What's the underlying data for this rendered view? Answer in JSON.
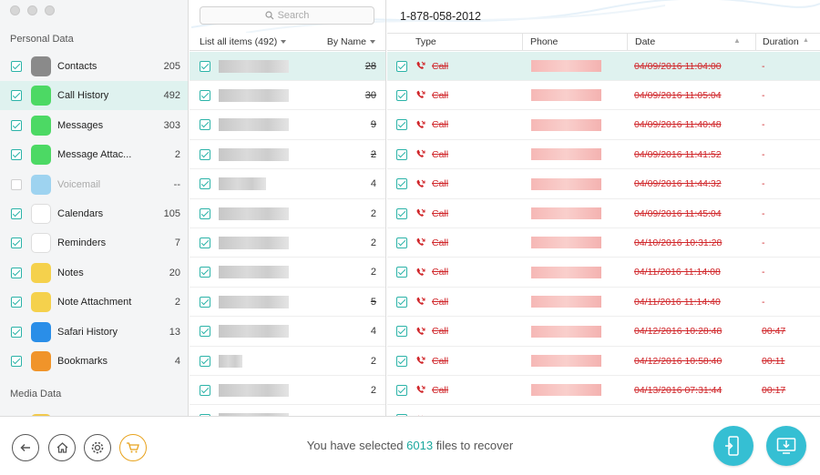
{
  "sidebar": {
    "section_personal": "Personal Data",
    "section_media": "Media Data",
    "items": [
      {
        "label": "Contacts",
        "count": "205",
        "checked": true,
        "icon": "contacts-icon",
        "color": "#8a8a8a"
      },
      {
        "label": "Call History",
        "count": "492",
        "checked": true,
        "icon": "phone-icon",
        "color": "#4cd964",
        "selected": true
      },
      {
        "label": "Messages",
        "count": "303",
        "checked": true,
        "icon": "message-icon",
        "color": "#4cd964"
      },
      {
        "label": "Message Attac...",
        "count": "2",
        "checked": true,
        "icon": "message-attachment-icon",
        "color": "#4cd964"
      },
      {
        "label": "Voicemail",
        "count": "--",
        "checked": false,
        "icon": "voicemail-icon",
        "color": "#9ed3f0"
      },
      {
        "label": "Calendars",
        "count": "105",
        "checked": true,
        "icon": "calendar-icon",
        "color": "#ffffff"
      },
      {
        "label": "Reminders",
        "count": "7",
        "checked": true,
        "icon": "reminders-icon",
        "color": "#ffffff"
      },
      {
        "label": "Notes",
        "count": "20",
        "checked": true,
        "icon": "notes-icon",
        "color": "#f5d14c"
      },
      {
        "label": "Note Attachment",
        "count": "2",
        "checked": true,
        "icon": "note-attachment-icon",
        "color": "#f5d14c"
      },
      {
        "label": "Safari History",
        "count": "13",
        "checked": true,
        "icon": "safari-icon",
        "color": "#2a8ee8"
      },
      {
        "label": "Bookmarks",
        "count": "4",
        "checked": true,
        "icon": "bookmarks-icon",
        "color": "#f0942a"
      }
    ]
  },
  "list": {
    "search_placeholder": "Search",
    "filter_label": "List all items (492)",
    "sort_label": "By Name",
    "rows": [
      {
        "count": "28",
        "strike": true,
        "w": 77
      },
      {
        "count": "30",
        "strike": true,
        "w": 77
      },
      {
        "count": "9",
        "strike": true,
        "w": 77
      },
      {
        "count": "2",
        "strike": true,
        "w": 77
      },
      {
        "count": "4",
        "strike": false,
        "w": 52
      },
      {
        "count": "2",
        "strike": false,
        "w": 77
      },
      {
        "count": "2",
        "strike": false,
        "w": 77
      },
      {
        "count": "2",
        "strike": false,
        "w": 77
      },
      {
        "count": "5",
        "strike": true,
        "w": 77
      },
      {
        "count": "4",
        "strike": false,
        "w": 77
      },
      {
        "count": "2",
        "strike": false,
        "w": 26
      },
      {
        "count": "2",
        "strike": false,
        "w": 77
      }
    ]
  },
  "detail": {
    "title": "1-878-058-2012",
    "columns": {
      "type": "Type",
      "phone": "Phone",
      "date": "Date",
      "duration": "Duration"
    },
    "rows": [
      {
        "type": "Call",
        "date": "04/09/2016 11:04:00",
        "duration": "-"
      },
      {
        "type": "Call",
        "date": "04/09/2016 11:05:04",
        "duration": "-"
      },
      {
        "type": "Call",
        "date": "04/09/2016 11:40:48",
        "duration": "-"
      },
      {
        "type": "Call",
        "date": "04/09/2016 11:41:52",
        "duration": "-"
      },
      {
        "type": "Call",
        "date": "04/09/2016 11:44:32",
        "duration": "-"
      },
      {
        "type": "Call",
        "date": "04/09/2016 11:45:04",
        "duration": "-"
      },
      {
        "type": "Call",
        "date": "04/10/2016 10:31:28",
        "duration": "-"
      },
      {
        "type": "Call",
        "date": "04/11/2016 11:14:08",
        "duration": "-"
      },
      {
        "type": "Call",
        "date": "04/11/2016 11:14:40",
        "duration": "-"
      },
      {
        "type": "Call",
        "date": "04/12/2016 10:28:48",
        "duration": "00:47"
      },
      {
        "type": "Call",
        "date": "04/12/2016 10:58:40",
        "duration": "00:11"
      },
      {
        "type": "Call",
        "date": "04/13/2016 07:31:44",
        "duration": "00:17"
      }
    ]
  },
  "footer": {
    "status_prefix": "You have selected ",
    "status_count": "6013",
    "status_suffix": " files to recover"
  },
  "colors": {
    "accent": "#2bb3a8",
    "selection": "#dff2ef",
    "deleted": "#d0262a",
    "action": "#35bfd3",
    "cart": "#e8a21c"
  }
}
